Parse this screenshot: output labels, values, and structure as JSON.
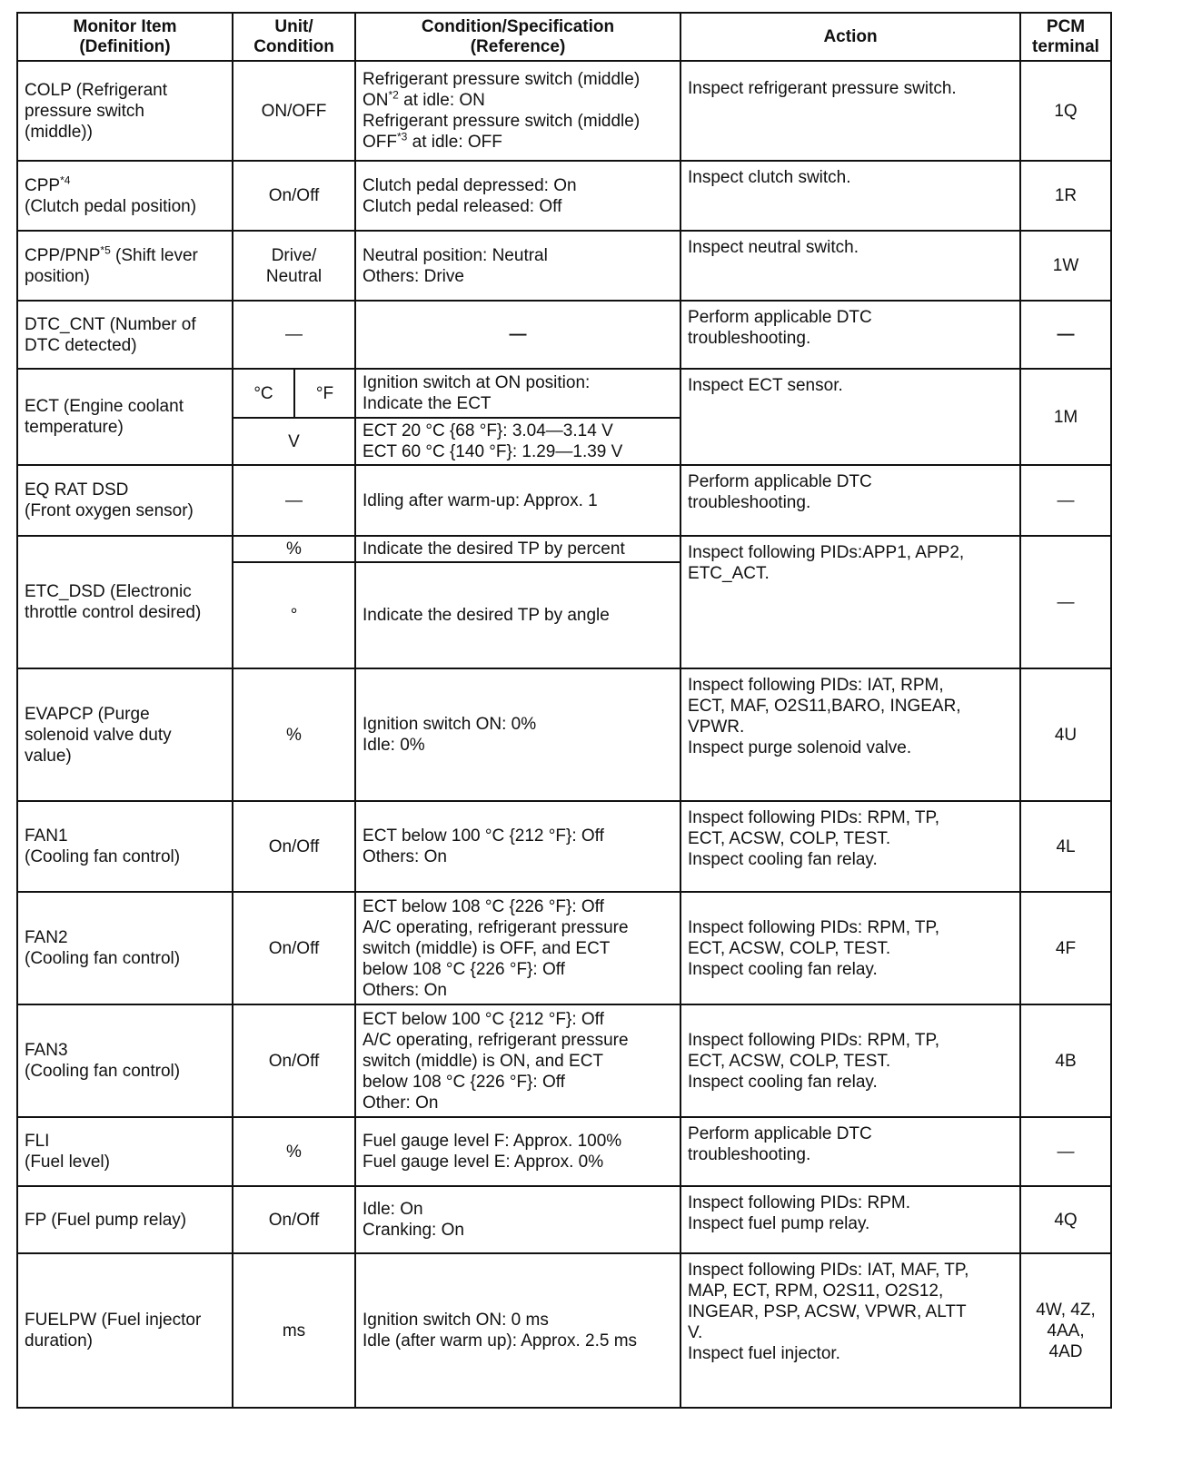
{
  "header": {
    "item": "Monitor Item\n(Definition)",
    "unit": "Unit/\nCondition",
    "condition": "Condition/Specification\n(Reference)",
    "action": "Action",
    "pcm": "PCM\nterminal"
  },
  "rows": [
    {
      "item": "COLP (Refrigerant\npressure switch\n(middle))",
      "unit": "ON/OFF",
      "cond_a": "Refrigerant pressure switch (middle)\nON",
      "cond_sup1": "*2",
      "cond_b": " at idle: ON\nRefrigerant pressure switch (middle)\nOFF",
      "cond_sup2": "*3",
      "cond_c": " at idle: OFF",
      "action": "Inspect refrigerant pressure switch.",
      "pcm": "1Q"
    },
    {
      "item": "CPP",
      "item_sup": "*4",
      "item_b": "\n(Clutch pedal position)",
      "unit": "On/Off",
      "condition": "Clutch pedal depressed: On\nClutch pedal released: Off",
      "action": "Inspect clutch switch.",
      "pcm": "1R"
    },
    {
      "item": "CPP/PNP",
      "item_sup": "*5",
      "item_b": " (Shift lever\nposition)",
      "unit": "Drive/\nNeutral",
      "condition": "Neutral position: Neutral\nOthers: Drive",
      "action": "Inspect neutral switch.",
      "pcm": "1W"
    },
    {
      "item": "DTC_CNT (Number of\nDTC detected)",
      "unit": "—",
      "condition": "—",
      "action": "Perform applicable DTC\ntroubleshooting.",
      "pcm": "—"
    },
    {
      "item": "ECT (Engine coolant\ntemperature)",
      "unit_c": "°C",
      "unit_f": "°F",
      "condition": "Ignition switch at ON position:\nIndicate the ECT",
      "unit_v": "V",
      "condition_v": "ECT 20 °C {68 °F}: 3.04—3.14 V\nECT 60 °C {140 °F}: 1.29—1.39 V",
      "action": "Inspect ECT sensor.",
      "pcm": "1M"
    },
    {
      "item": "EQ RAT DSD\n(Front oxygen sensor)",
      "unit": "—",
      "condition": "Idling after warm-up: Approx. 1",
      "action": "Perform applicable DTC\ntroubleshooting.",
      "pcm": "—"
    },
    {
      "item": "ETC_DSD (Electronic\nthrottle control desired)",
      "unit": "%",
      "condition": "Indicate the desired TP by percent",
      "unit_deg": "°",
      "condition_deg": "Indicate the desired TP by angle",
      "action": "Inspect following PIDs:APP1, APP2,\nETC_ACT.",
      "pcm": "—"
    },
    {
      "item": "EVAPCP (Purge\nsolenoid valve duty\nvalue)",
      "unit": "%",
      "condition": "Ignition switch ON: 0%\nIdle: 0%",
      "action": "Inspect following PIDs: IAT, RPM,\nECT, MAF, O2S11,BARO, INGEAR,\nVPWR.\nInspect purge solenoid valve.",
      "pcm": "4U"
    },
    {
      "item": "FAN1\n(Cooling fan control)",
      "unit": "On/Off",
      "condition": "ECT below 100 °C {212 °F}: Off\nOthers: On",
      "action": "Inspect following PIDs: RPM, TP,\nECT, ACSW, COLP, TEST.\nInspect cooling fan relay.",
      "pcm": "4L"
    },
    {
      "item": "FAN2\n(Cooling fan control)",
      "unit": "On/Off",
      "condition": "ECT below 108 °C {226 °F}: Off\nA/C operating, refrigerant pressure\nswitch (middle) is OFF, and ECT\nbelow 108 °C {226 °F}: Off\nOthers: On",
      "action": "Inspect following PIDs: RPM, TP,\nECT, ACSW, COLP, TEST.\nInspect cooling fan relay.",
      "pcm": "4F"
    },
    {
      "item": "FAN3\n(Cooling fan control)",
      "unit": "On/Off",
      "condition": "ECT below 100 °C {212 °F}: Off\nA/C operating, refrigerant pressure\nswitch (middle) is ON, and ECT\nbelow 108 °C {226 °F}: Off\nOther: On",
      "action": "Inspect following PIDs: RPM, TP,\nECT, ACSW, COLP, TEST.\nInspect cooling fan relay.",
      "pcm": "4B"
    },
    {
      "item": "FLI\n(Fuel level)",
      "unit": "%",
      "condition": "Fuel gauge level F: Approx. 100%\nFuel gauge level E: Approx. 0%",
      "action": "Perform applicable DTC\ntroubleshooting.",
      "pcm": "—"
    },
    {
      "item": "FP (Fuel pump relay)",
      "unit": "On/Off",
      "condition": "Idle: On\nCranking: On",
      "action": "Inspect following PIDs: RPM.\nInspect fuel pump relay.",
      "pcm": "4Q"
    },
    {
      "item": "FUELPW (Fuel injector\nduration)",
      "unit": "ms",
      "condition": "Ignition switch ON: 0 ms\nIdle (after warm up): Approx. 2.5 ms",
      "action": "Inspect following PIDs: IAT, MAF, TP,\nMAP, ECT, RPM, O2S11, O2S12,\nINGEAR, PSP, ACSW, VPWR, ALTT\nV.\nInspect fuel injector.",
      "pcm": "4W, 4Z,\n4AA,\n4AD"
    }
  ]
}
